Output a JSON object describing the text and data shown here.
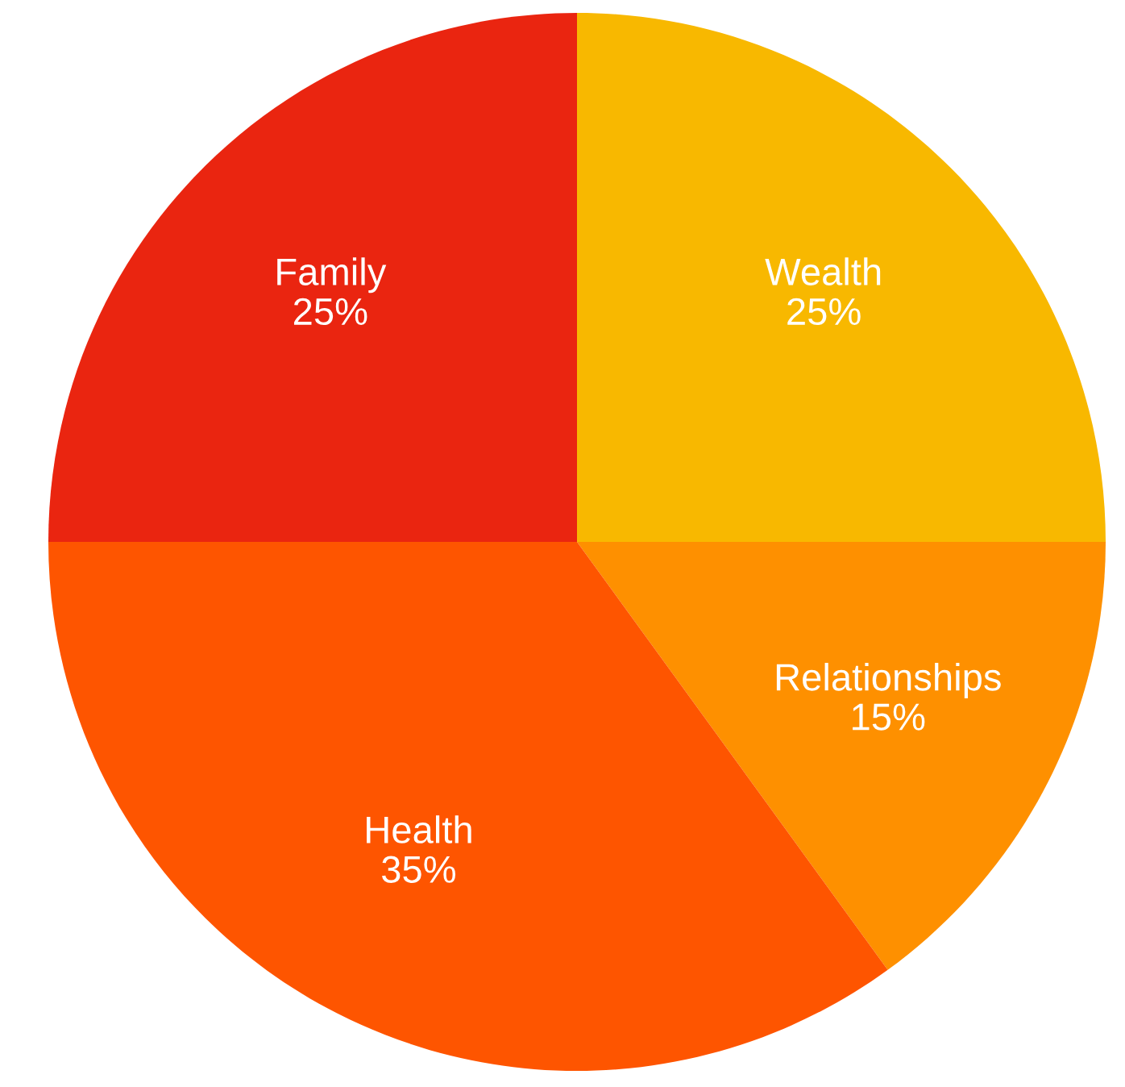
{
  "chart_data": {
    "type": "pie",
    "categories": [
      "Wealth",
      "Relationships",
      "Health",
      "Family"
    ],
    "values": [
      25,
      15,
      35,
      25
    ],
    "value_labels": [
      "25%",
      "15%",
      "35%",
      "25%"
    ],
    "colors": [
      "#f8b800",
      "#fe9000",
      "#fe5500",
      "#ea2510"
    ]
  }
}
